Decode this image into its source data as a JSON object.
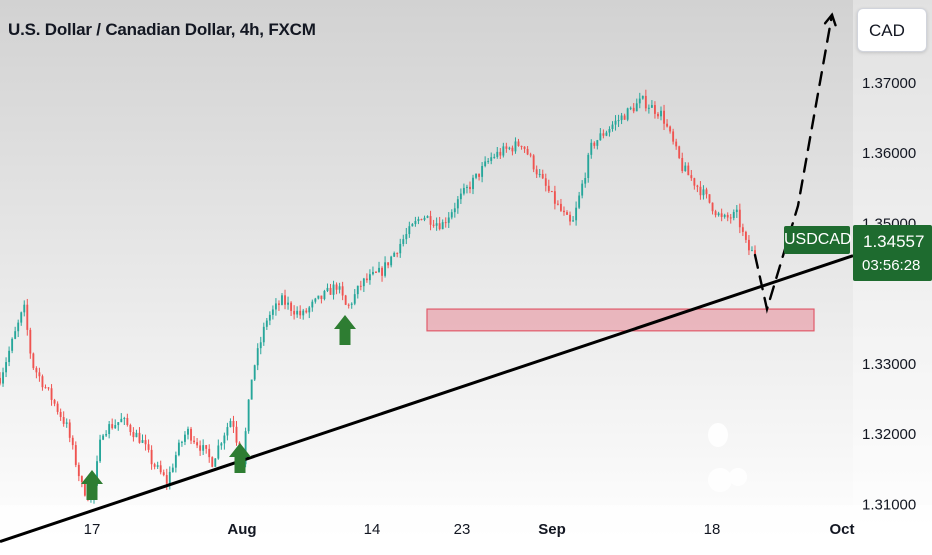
{
  "header": {
    "title": "U.S. Dollar / Canadian Dollar, 4h, FXCM",
    "currency": "CAD"
  },
  "price_tag": {
    "symbol": "USDCAD",
    "price": "1.34557",
    "countdown": "03:56:28"
  },
  "colors": {
    "up": "#26a69a",
    "down": "#ef5350",
    "zone_fill": "#e8a4ad",
    "zone_stroke": "#e05a6a",
    "arrow": "#2e7d32",
    "label_green": "#1e6b2f",
    "bg_top": "#d6d6d6",
    "bg_bottom": "#ffffff"
  },
  "chart_data": {
    "type": "candlestick",
    "title": "U.S. Dollar / Canadian Dollar, 4h, FXCM",
    "y_ticks": [
      "1.37000",
      "1.36000",
      "1.35000",
      "1.33000",
      "1.32000",
      "1.31000"
    ],
    "y_tick_values": [
      1.37,
      1.36,
      1.35,
      1.33,
      1.32,
      1.31
    ],
    "x_ticks": [
      "17",
      "Aug",
      "14",
      "23",
      "Sep",
      "18",
      "Oct"
    ],
    "x_tick_days": [
      17,
      32,
      45,
      54,
      63,
      79,
      92
    ],
    "ylim": [
      1.3035,
      1.3818
    ],
    "xlim_days": [
      7.8,
      93.1
    ],
    "grid": false,
    "last_price": 1.34557,
    "path_anchors": [
      [
        7.8,
        1.328
      ],
      [
        10.2,
        1.338
      ],
      [
        11,
        1.33
      ],
      [
        13,
        1.325
      ],
      [
        14.5,
        1.321
      ],
      [
        16,
        1.3125
      ],
      [
        17,
        1.3105
      ],
      [
        18,
        1.3205
      ],
      [
        20,
        1.322
      ],
      [
        22,
        1.319
      ],
      [
        23,
        1.316
      ],
      [
        24.5,
        1.3132
      ],
      [
        25.5,
        1.3175
      ],
      [
        26.5,
        1.3205
      ],
      [
        28,
        1.318
      ],
      [
        29,
        1.316
      ],
      [
        30,
        1.3195
      ],
      [
        31,
        1.3225
      ],
      [
        32,
        1.3155
      ],
      [
        33,
        1.3285
      ],
      [
        34.5,
        1.3365
      ],
      [
        36,
        1.339
      ],
      [
        38,
        1.3368
      ],
      [
        39,
        1.3383
      ],
      [
        41.5,
        1.3412
      ],
      [
        42.5,
        1.3378
      ],
      [
        44,
        1.3415
      ],
      [
        46,
        1.3432
      ],
      [
        48,
        1.3475
      ],
      [
        50,
        1.3512
      ],
      [
        52,
        1.3498
      ],
      [
        53.5,
        1.353
      ],
      [
        55,
        1.3558
      ],
      [
        57,
        1.3595
      ],
      [
        60,
        1.3615
      ],
      [
        62,
        1.356
      ],
      [
        64,
        1.3515
      ],
      [
        65,
        1.3495
      ],
      [
        67,
        1.3612
      ],
      [
        69,
        1.364
      ],
      [
        72,
        1.3675
      ],
      [
        73,
        1.3665
      ],
      [
        74,
        1.3655
      ],
      [
        76,
        1.358
      ],
      [
        78,
        1.3545
      ],
      [
        80,
        1.3505
      ],
      [
        81.5,
        1.3512
      ],
      [
        82.5,
        1.3465
      ],
      [
        83.3,
        1.3455
      ]
    ],
    "candle_count": 250,
    "trendline": [
      [
        7.8,
        1.3047
      ],
      [
        93.1,
        1.3454
      ]
    ],
    "support_zone": {
      "x_start_day": 50.5,
      "x_end_day": 89.2,
      "y_low": 1.3347,
      "y_high": 1.3378
    },
    "projection_path": [
      [
        83.3,
        1.3455
      ],
      [
        84.5,
        1.3378
      ],
      [
        87.6,
        1.3525
      ],
      [
        91,
        1.3797
      ]
    ],
    "buy_arrows_days": [
      17,
      31.8,
      42.3
    ]
  }
}
